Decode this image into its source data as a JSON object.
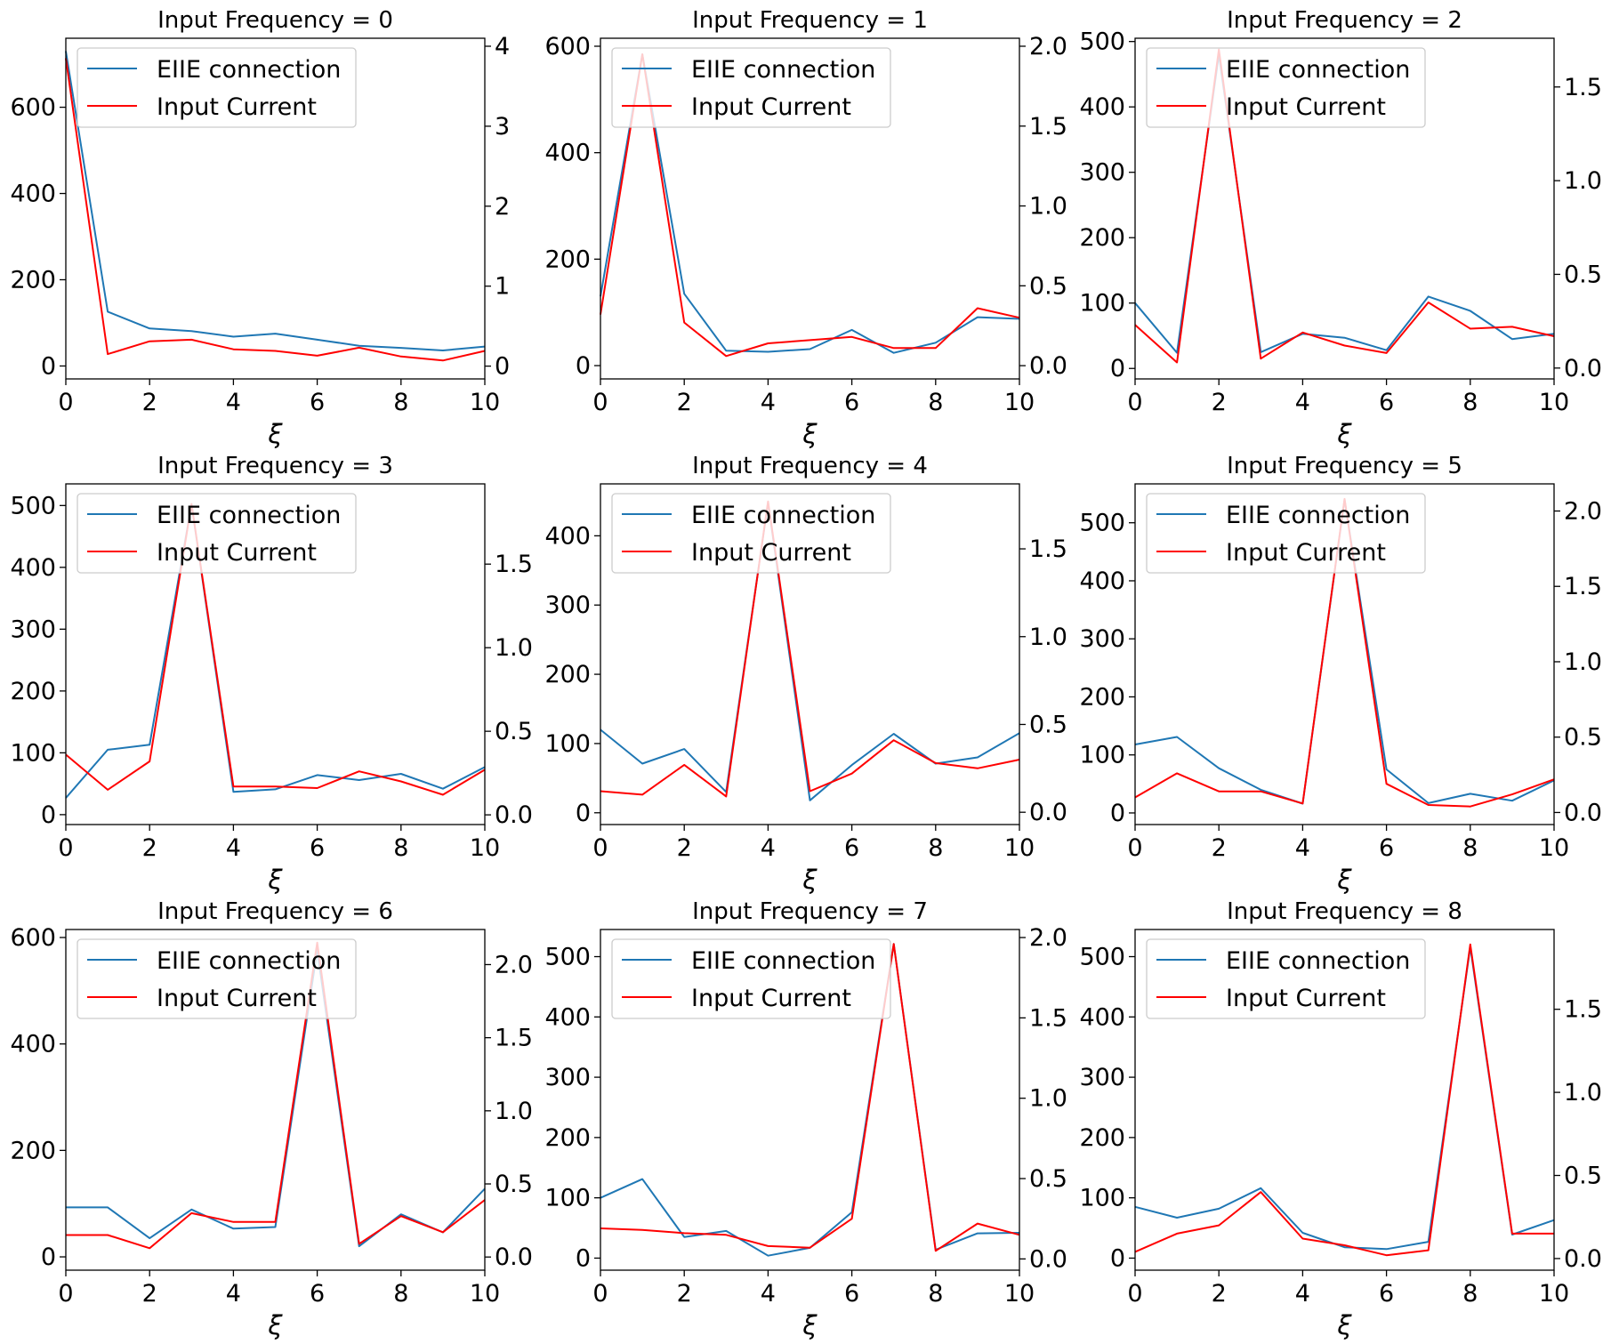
{
  "figure": {
    "colors": {
      "eiie": "#1f77b4",
      "input": "#ff0000"
    },
    "legend_labels": [
      "EIIE connection",
      "Input Current"
    ],
    "xlabel": "ξ"
  },
  "chart_data": [
    {
      "type": "line",
      "title": "Input Frequency = 0",
      "xlabel": "ξ",
      "x": [
        0,
        1,
        2,
        3,
        4,
        5,
        6,
        7,
        8,
        9,
        10
      ],
      "series": [
        {
          "name": "EIIE connection",
          "axis": "left",
          "values": [
            730,
            126,
            87,
            81,
            68,
            75,
            61,
            47,
            42,
            36,
            45
          ]
        },
        {
          "name": "Input Current",
          "axis": "right",
          "values": [
            3.85,
            0.15,
            0.31,
            0.33,
            0.21,
            0.19,
            0.13,
            0.23,
            0.12,
            0.07,
            0.19
          ]
        }
      ],
      "ylim_left": [
        -30,
        760
      ],
      "yticks_left": [
        "0",
        "200",
        "400",
        "600"
      ],
      "ytick_values_left": [
        0,
        200,
        400,
        600
      ],
      "ylim_right": [
        -0.16,
        4.1
      ],
      "yticks_right": [
        "0",
        "1",
        "2",
        "3",
        "4"
      ],
      "ytick_values_right": [
        0,
        1,
        2,
        3,
        4
      ],
      "legend": "upper left"
    },
    {
      "type": "line",
      "title": "Input Frequency = 1",
      "xlabel": "ξ",
      "x": [
        0,
        1,
        2,
        3,
        4,
        5,
        6,
        7,
        8,
        9,
        10
      ],
      "series": [
        {
          "name": "EIIE connection",
          "axis": "left",
          "values": [
            130,
            585,
            135,
            28,
            26,
            31,
            67,
            24,
            43,
            91,
            88
          ]
        },
        {
          "name": "Input Current",
          "axis": "right",
          "values": [
            0.32,
            1.95,
            0.27,
            0.06,
            0.14,
            0.16,
            0.18,
            0.11,
            0.11,
            0.36,
            0.3
          ]
        }
      ],
      "ylim_left": [
        -25,
        615
      ],
      "yticks_left": [
        "0",
        "200",
        "400",
        "600"
      ],
      "ytick_values_left": [
        0,
        200,
        400,
        600
      ],
      "ylim_right": [
        -0.083,
        2.05
      ],
      "yticks_right": [
        "0.0",
        "0.5",
        "1.0",
        "1.5",
        "2.0"
      ],
      "ytick_values_right": [
        0,
        0.5,
        1.0,
        1.5,
        2.0
      ],
      "legend": "upper left"
    },
    {
      "type": "line",
      "title": "Input Frequency = 2",
      "xlabel": "ξ",
      "x": [
        0,
        1,
        2,
        3,
        4,
        5,
        6,
        7,
        8,
        9,
        10
      ],
      "series": [
        {
          "name": "EIIE connection",
          "axis": "left",
          "values": [
            100,
            24,
            480,
            25,
            53,
            47,
            28,
            110,
            88,
            45,
            53
          ]
        },
        {
          "name": "Input Current",
          "axis": "right",
          "values": [
            0.23,
            0.03,
            1.7,
            0.05,
            0.19,
            0.12,
            0.08,
            0.35,
            0.21,
            0.22,
            0.17
          ]
        }
      ],
      "ylim_left": [
        -16,
        505
      ],
      "yticks_left": [
        "0",
        "100",
        "200",
        "300",
        "400",
        "500"
      ],
      "ytick_values_left": [
        0,
        100,
        200,
        300,
        400,
        500
      ],
      "ylim_right": [
        -0.058,
        1.76
      ],
      "yticks_right": [
        "0.0",
        "0.5",
        "1.0",
        "1.5"
      ],
      "ytick_values_right": [
        0,
        0.5,
        1.0,
        1.5
      ],
      "legend": "upper left"
    },
    {
      "type": "line",
      "title": "Input Frequency = 3",
      "xlabel": "ξ",
      "x": [
        0,
        1,
        2,
        3,
        4,
        5,
        6,
        7,
        8,
        9,
        10
      ],
      "series": [
        {
          "name": "EIIE connection",
          "axis": "left",
          "values": [
            27,
            105,
            113,
            502,
            37,
            41,
            64,
            56,
            66,
            42,
            77
          ]
        },
        {
          "name": "Input Current",
          "axis": "right",
          "values": [
            0.36,
            0.15,
            0.32,
            1.86,
            0.17,
            0.17,
            0.16,
            0.26,
            0.2,
            0.12,
            0.27
          ]
        }
      ],
      "ylim_left": [
        -16,
        535
      ],
      "yticks_left": [
        "0",
        "100",
        "200",
        "300",
        "400",
        "500"
      ],
      "ytick_values_left": [
        0,
        100,
        200,
        300,
        400,
        500
      ],
      "ylim_right": [
        -0.058,
        1.98
      ],
      "yticks_right": [
        "0.0",
        "0.5",
        "1.0",
        "1.5"
      ],
      "ytick_values_right": [
        0,
        0.5,
        1.0,
        1.5
      ],
      "legend": "upper left"
    },
    {
      "type": "line",
      "title": "Input Frequency = 4",
      "xlabel": "ξ",
      "x": [
        0,
        1,
        2,
        3,
        4,
        5,
        6,
        7,
        8,
        9,
        10
      ],
      "series": [
        {
          "name": "EIIE connection",
          "axis": "left",
          "values": [
            120,
            71,
            92,
            30,
            448,
            18,
            69,
            114,
            71,
            80,
            115
          ]
        },
        {
          "name": "Input Current",
          "axis": "right",
          "values": [
            0.12,
            0.1,
            0.27,
            0.09,
            1.77,
            0.12,
            0.22,
            0.41,
            0.28,
            0.25,
            0.3
          ]
        }
      ],
      "ylim_left": [
        -17,
        475
      ],
      "yticks_left": [
        "0",
        "100",
        "200",
        "300",
        "400"
      ],
      "ytick_values_left": [
        0,
        100,
        200,
        300,
        400
      ],
      "ylim_right": [
        -0.07,
        1.87
      ],
      "yticks_right": [
        "0.0",
        "0.5",
        "1.0",
        "1.5"
      ],
      "ytick_values_right": [
        0,
        0.5,
        1.0,
        1.5
      ],
      "legend": "upper left"
    },
    {
      "type": "line",
      "title": "Input Frequency = 5",
      "xlabel": "ξ",
      "x": [
        0,
        1,
        2,
        3,
        4,
        5,
        6,
        7,
        8,
        9,
        10
      ],
      "series": [
        {
          "name": "EIIE connection",
          "axis": "left",
          "values": [
            118,
            131,
            77,
            40,
            16,
            540,
            75,
            17,
            33,
            21,
            56
          ]
        },
        {
          "name": "Input Current",
          "axis": "right",
          "values": [
            0.1,
            0.26,
            0.14,
            0.14,
            0.06,
            2.08,
            0.19,
            0.05,
            0.04,
            0.12,
            0.22
          ]
        }
      ],
      "ylim_left": [
        -20,
        567
      ],
      "yticks_left": [
        "0",
        "100",
        "200",
        "300",
        "400",
        "500"
      ],
      "ytick_values_left": [
        0,
        100,
        200,
        300,
        400,
        500
      ],
      "ylim_right": [
        -0.08,
        2.18
      ],
      "yticks_right": [
        "0.0",
        "0.5",
        "1.0",
        "1.5",
        "2.0"
      ],
      "ytick_values_right": [
        0,
        0.5,
        1.0,
        1.5,
        2.0
      ],
      "legend": "upper left"
    },
    {
      "type": "line",
      "title": "Input Frequency = 6",
      "xlabel": "ξ",
      "x": [
        0,
        1,
        2,
        3,
        4,
        5,
        6,
        7,
        8,
        9,
        10
      ],
      "series": [
        {
          "name": "EIIE connection",
          "axis": "left",
          "values": [
            93,
            93,
            35,
            89,
            53,
            56,
            576,
            20,
            80,
            46,
            128
          ]
        },
        {
          "name": "Input Current",
          "axis": "right",
          "values": [
            0.15,
            0.15,
            0.06,
            0.3,
            0.24,
            0.24,
            2.15,
            0.09,
            0.28,
            0.17,
            0.39
          ]
        }
      ],
      "ylim_left": [
        -25,
        615
      ],
      "yticks_left": [
        "0",
        "200",
        "400",
        "600"
      ],
      "ytick_values_left": [
        0,
        200,
        400,
        600
      ],
      "ylim_right": [
        -0.09,
        2.24
      ],
      "yticks_right": [
        "0.0",
        "0.5",
        "1.0",
        "1.5",
        "2.0"
      ],
      "ytick_values_right": [
        0,
        0.5,
        1.0,
        1.5,
        2.0
      ],
      "legend": "upper left"
    },
    {
      "type": "line",
      "title": "Input Frequency = 7",
      "xlabel": "ξ",
      "x": [
        0,
        1,
        2,
        3,
        4,
        5,
        6,
        7,
        8,
        9,
        10
      ],
      "series": [
        {
          "name": "EIIE connection",
          "axis": "left",
          "values": [
            100,
            131,
            35,
            45,
            4,
            17,
            76,
            521,
            14,
            41,
            42
          ]
        },
        {
          "name": "Input Current",
          "axis": "right",
          "values": [
            0.19,
            0.18,
            0.16,
            0.15,
            0.08,
            0.07,
            0.25,
            1.96,
            0.05,
            0.22,
            0.15
          ]
        }
      ],
      "ylim_left": [
        -20,
        545
      ],
      "yticks_left": [
        "0",
        "100",
        "200",
        "300",
        "400",
        "500"
      ],
      "ytick_values_left": [
        0,
        100,
        200,
        300,
        400,
        500
      ],
      "ylim_right": [
        -0.07,
        2.05
      ],
      "yticks_right": [
        "0.0",
        "0.5",
        "1.0",
        "1.5",
        "2.0"
      ],
      "ytick_values_right": [
        0,
        0.5,
        1.0,
        1.5,
        2.0
      ],
      "legend": "upper left"
    },
    {
      "type": "line",
      "title": "Input Frequency = 8",
      "xlabel": "ξ",
      "x": [
        0,
        1,
        2,
        3,
        4,
        5,
        6,
        7,
        8,
        9,
        10
      ],
      "series": [
        {
          "name": "EIIE connection",
          "axis": "left",
          "values": [
            85,
            67,
            82,
            116,
            42,
            18,
            15,
            27,
            516,
            39,
            63
          ]
        },
        {
          "name": "Input Current",
          "axis": "right",
          "values": [
            0.04,
            0.15,
            0.2,
            0.4,
            0.12,
            0.08,
            0.02,
            0.05,
            1.89,
            0.15,
            0.15
          ]
        }
      ],
      "ylim_left": [
        -20,
        545
      ],
      "yticks_left": [
        "0",
        "100",
        "200",
        "300",
        "400",
        "500"
      ],
      "ytick_values_left": [
        0,
        100,
        200,
        300,
        400,
        500
      ],
      "ylim_right": [
        -0.07,
        1.98
      ],
      "yticks_right": [
        "0.0",
        "0.5",
        "1.0",
        "1.5"
      ],
      "ytick_values_right": [
        0,
        0.5,
        1.0,
        1.5
      ],
      "legend": "upper left"
    }
  ]
}
